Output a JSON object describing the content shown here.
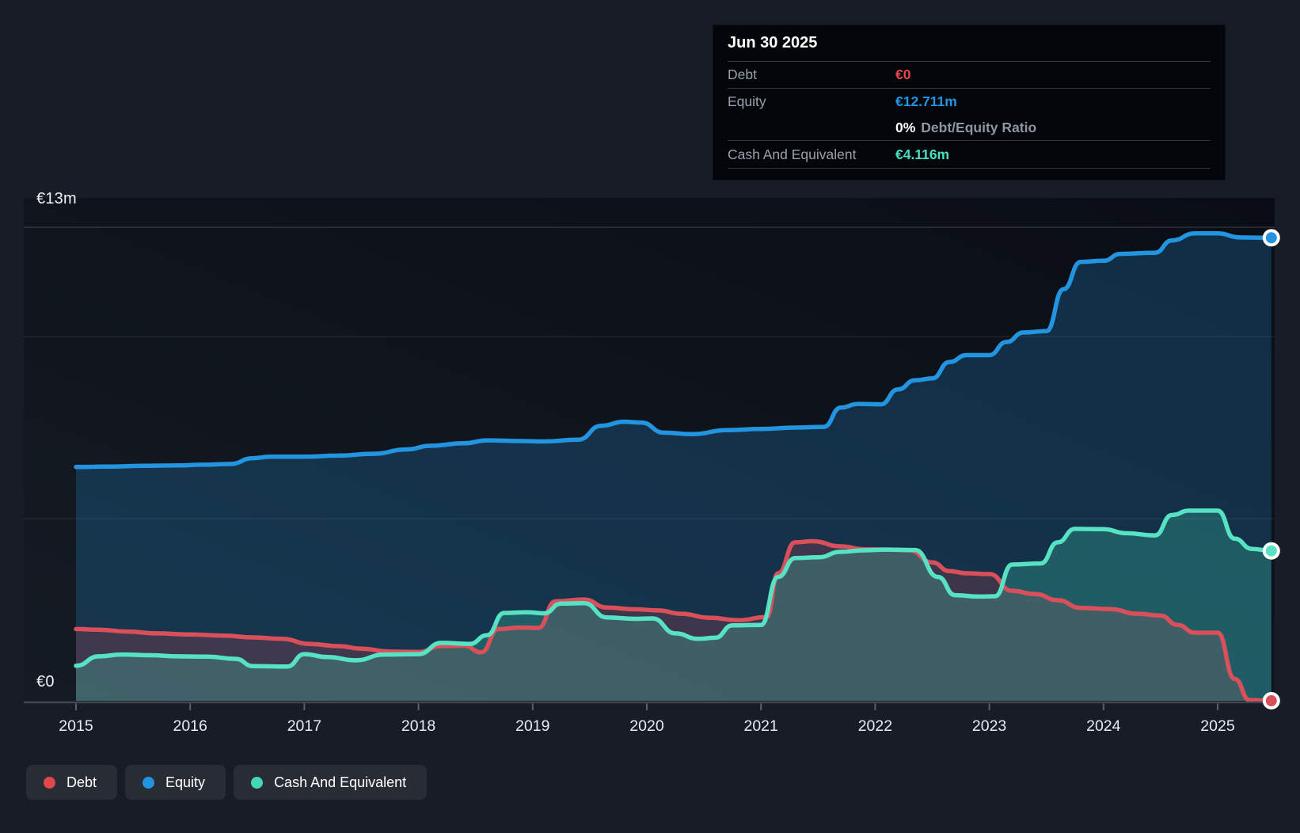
{
  "tooltip": {
    "date": "Jun 30 2025",
    "rows": {
      "debt": {
        "label": "Debt",
        "value": "€0"
      },
      "equity": {
        "label": "Equity",
        "value": "€12.711m"
      },
      "ratio": {
        "value_bold": "0%",
        "value_rest": "Debt/Equity Ratio"
      },
      "cash": {
        "label": "Cash And Equivalent",
        "value": "€4.116m"
      }
    }
  },
  "axes": {
    "y_top_label": "€13m",
    "y_zero_label": "€0",
    "years": [
      2015,
      2016,
      2017,
      2018,
      2019,
      2020,
      2021,
      2022,
      2023,
      2024,
      2025
    ]
  },
  "legend": {
    "items": [
      {
        "label": "Debt",
        "color": "#e0484e"
      },
      {
        "label": "Equity",
        "color": "#2394df"
      },
      {
        "label": "Cash And Equivalent",
        "color": "#45d6b8"
      }
    ]
  },
  "colors": {
    "accent_blue": "#2394df",
    "accent_red": "#d9505a",
    "accent_teal": "#57e3c3",
    "grid": "rgba(255,255,255,0.10)",
    "grid_top": "rgba(255,255,255,0.22)",
    "axis": "#40474f",
    "tick": "#596069"
  },
  "chart_data": {
    "type": "area",
    "title": "Debt, Equity and Cash And Equivalent history (EUR millions)",
    "x_range": [
      2015.0,
      2025.47
    ],
    "ylim": [
      0,
      13
    ],
    "gridline_values": [
      13,
      10,
      5
    ],
    "legend_position": "bottom",
    "series": [
      {
        "name": "Equity",
        "color": "#2394df",
        "fill": "rgba(35,148,223,0.24)",
        "end_marker_value": 12.711,
        "points": [
          [
            2015.0,
            6.42
          ],
          [
            2015.3,
            6.43
          ],
          [
            2015.6,
            6.45
          ],
          [
            2015.9,
            6.46
          ],
          [
            2016.1,
            6.48
          ],
          [
            2016.35,
            6.5
          ],
          [
            2016.55,
            6.66
          ],
          [
            2016.7,
            6.7
          ],
          [
            2017.0,
            6.7
          ],
          [
            2017.3,
            6.73
          ],
          [
            2017.6,
            6.78
          ],
          [
            2017.9,
            6.9
          ],
          [
            2018.1,
            7.0
          ],
          [
            2018.4,
            7.07
          ],
          [
            2018.6,
            7.15
          ],
          [
            2018.9,
            7.13
          ],
          [
            2019.1,
            7.12
          ],
          [
            2019.4,
            7.17
          ],
          [
            2019.6,
            7.55
          ],
          [
            2019.8,
            7.66
          ],
          [
            2019.95,
            7.64
          ],
          [
            2020.15,
            7.36
          ],
          [
            2020.4,
            7.32
          ],
          [
            2020.7,
            7.43
          ],
          [
            2021.0,
            7.46
          ],
          [
            2021.3,
            7.5
          ],
          [
            2021.55,
            7.52
          ],
          [
            2021.7,
            8.05
          ],
          [
            2021.85,
            8.15
          ],
          [
            2022.05,
            8.14
          ],
          [
            2022.2,
            8.55
          ],
          [
            2022.35,
            8.8
          ],
          [
            2022.5,
            8.85
          ],
          [
            2022.65,
            9.3
          ],
          [
            2022.8,
            9.49
          ],
          [
            2023.0,
            9.49
          ],
          [
            2023.15,
            9.85
          ],
          [
            2023.3,
            10.11
          ],
          [
            2023.5,
            10.15
          ],
          [
            2023.65,
            11.3
          ],
          [
            2023.8,
            12.05
          ],
          [
            2024.0,
            12.08
          ],
          [
            2024.15,
            12.27
          ],
          [
            2024.45,
            12.3
          ],
          [
            2024.6,
            12.64
          ],
          [
            2024.8,
            12.83
          ],
          [
            2025.0,
            12.83
          ],
          [
            2025.2,
            12.72
          ],
          [
            2025.47,
            12.711
          ]
        ]
      },
      {
        "name": "Debt",
        "color": "#d9505a",
        "fill": "rgba(226,72,82,0.20)",
        "end_marker_value": 0,
        "points": [
          [
            2015.0,
            1.97
          ],
          [
            2015.2,
            1.95
          ],
          [
            2015.45,
            1.9
          ],
          [
            2015.7,
            1.85
          ],
          [
            2016.0,
            1.82
          ],
          [
            2016.3,
            1.79
          ],
          [
            2016.55,
            1.74
          ],
          [
            2016.8,
            1.7
          ],
          [
            2017.05,
            1.56
          ],
          [
            2017.3,
            1.5
          ],
          [
            2017.5,
            1.43
          ],
          [
            2017.75,
            1.35
          ],
          [
            2018.0,
            1.34
          ],
          [
            2018.2,
            1.5
          ],
          [
            2018.4,
            1.51
          ],
          [
            2018.55,
            1.33
          ],
          [
            2018.7,
            1.97
          ],
          [
            2018.9,
            2.01
          ],
          [
            2019.05,
            2.0
          ],
          [
            2019.2,
            2.73
          ],
          [
            2019.45,
            2.78
          ],
          [
            2019.65,
            2.56
          ],
          [
            2019.9,
            2.51
          ],
          [
            2020.1,
            2.48
          ],
          [
            2020.3,
            2.39
          ],
          [
            2020.55,
            2.28
          ],
          [
            2020.8,
            2.21
          ],
          [
            2021.05,
            2.3
          ],
          [
            2021.15,
            3.5
          ],
          [
            2021.3,
            4.35
          ],
          [
            2021.45,
            4.38
          ],
          [
            2021.7,
            4.24
          ],
          [
            2021.9,
            4.16
          ],
          [
            2022.1,
            4.15
          ],
          [
            2022.3,
            4.13
          ],
          [
            2022.5,
            3.8
          ],
          [
            2022.65,
            3.56
          ],
          [
            2022.8,
            3.5
          ],
          [
            2023.0,
            3.48
          ],
          [
            2023.2,
            3.02
          ],
          [
            2023.4,
            2.93
          ],
          [
            2023.6,
            2.76
          ],
          [
            2023.8,
            2.55
          ],
          [
            2024.05,
            2.52
          ],
          [
            2024.3,
            2.39
          ],
          [
            2024.5,
            2.34
          ],
          [
            2024.65,
            2.08
          ],
          [
            2024.8,
            1.87
          ],
          [
            2025.0,
            1.87
          ],
          [
            2025.15,
            0.6
          ],
          [
            2025.28,
            0.02
          ],
          [
            2025.47,
            0.0
          ]
        ]
      },
      {
        "name": "Cash And Equivalent",
        "color": "#57e3c3",
        "fill": "rgba(70,224,190,0.24)",
        "end_marker_value": 4.116,
        "points": [
          [
            2015.0,
            0.96
          ],
          [
            2015.2,
            1.22
          ],
          [
            2015.4,
            1.27
          ],
          [
            2015.65,
            1.25
          ],
          [
            2015.9,
            1.22
          ],
          [
            2016.15,
            1.21
          ],
          [
            2016.4,
            1.15
          ],
          [
            2016.55,
            0.95
          ],
          [
            2016.85,
            0.94
          ],
          [
            2017.0,
            1.28
          ],
          [
            2017.2,
            1.2
          ],
          [
            2017.45,
            1.11
          ],
          [
            2017.7,
            1.27
          ],
          [
            2018.0,
            1.28
          ],
          [
            2018.2,
            1.59
          ],
          [
            2018.45,
            1.56
          ],
          [
            2018.6,
            1.8
          ],
          [
            2018.75,
            2.41
          ],
          [
            2018.95,
            2.43
          ],
          [
            2019.1,
            2.4
          ],
          [
            2019.25,
            2.67
          ],
          [
            2019.45,
            2.68
          ],
          [
            2019.65,
            2.29
          ],
          [
            2019.9,
            2.25
          ],
          [
            2020.05,
            2.26
          ],
          [
            2020.25,
            1.85
          ],
          [
            2020.45,
            1.7
          ],
          [
            2020.6,
            1.73
          ],
          [
            2020.75,
            2.07
          ],
          [
            2021.0,
            2.08
          ],
          [
            2021.15,
            3.4
          ],
          [
            2021.3,
            3.92
          ],
          [
            2021.5,
            3.94
          ],
          [
            2021.7,
            4.09
          ],
          [
            2021.9,
            4.13
          ],
          [
            2022.1,
            4.15
          ],
          [
            2022.35,
            4.14
          ],
          [
            2022.55,
            3.4
          ],
          [
            2022.7,
            2.9
          ],
          [
            2022.9,
            2.86
          ],
          [
            2023.05,
            2.87
          ],
          [
            2023.2,
            3.74
          ],
          [
            2023.45,
            3.77
          ],
          [
            2023.6,
            4.35
          ],
          [
            2023.75,
            4.72
          ],
          [
            2024.0,
            4.71
          ],
          [
            2024.2,
            4.6
          ],
          [
            2024.45,
            4.54
          ],
          [
            2024.6,
            5.1
          ],
          [
            2024.75,
            5.22
          ],
          [
            2025.0,
            5.22
          ],
          [
            2025.15,
            4.45
          ],
          [
            2025.3,
            4.17
          ],
          [
            2025.47,
            4.116
          ]
        ]
      }
    ]
  }
}
